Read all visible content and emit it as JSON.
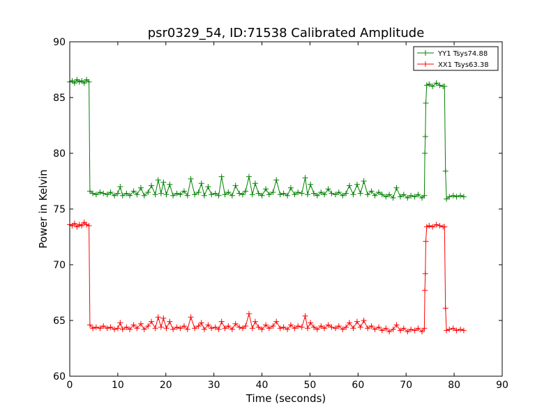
{
  "chart_data": {
    "type": "line",
    "title": "psr0329_54, ID:71538 Calibrated Amplitude",
    "xlabel": "Time (seconds)",
    "ylabel": "Power in Kelvin",
    "xlim": [
      0,
      90
    ],
    "ylim": [
      60,
      90
    ],
    "xticks": [
      0,
      10,
      20,
      30,
      40,
      50,
      60,
      70,
      80,
      90
    ],
    "yticks": [
      60,
      65,
      70,
      75,
      80,
      85,
      90
    ],
    "grid": false,
    "legend_position": "top-right",
    "marker": "plus",
    "series": [
      {
        "name": "YY1 Tsys74.88",
        "color": "#008000",
        "points": [
          [
            0.0,
            86.4
          ],
          [
            0.5,
            86.5
          ],
          [
            1.0,
            86.3
          ],
          [
            1.5,
            86.6
          ],
          [
            2.0,
            86.4
          ],
          [
            2.5,
            86.5
          ],
          [
            3.0,
            86.3
          ],
          [
            3.5,
            86.6
          ],
          [
            4.0,
            86.4
          ],
          [
            4.2,
            76.6
          ],
          [
            4.8,
            76.4
          ],
          [
            5.5,
            76.3
          ],
          [
            6.3,
            76.5
          ],
          [
            7.0,
            76.4
          ],
          [
            7.8,
            76.3
          ],
          [
            8.5,
            76.5
          ],
          [
            9.3,
            76.2
          ],
          [
            10.0,
            76.4
          ],
          [
            10.5,
            77.0
          ],
          [
            11.0,
            76.2
          ],
          [
            11.8,
            76.4
          ],
          [
            12.5,
            76.2
          ],
          [
            13.3,
            76.6
          ],
          [
            14.0,
            76.3
          ],
          [
            14.8,
            76.9
          ],
          [
            15.5,
            76.2
          ],
          [
            16.3,
            76.5
          ],
          [
            17.0,
            77.1
          ],
          [
            17.8,
            76.3
          ],
          [
            18.4,
            77.6
          ],
          [
            19.0,
            76.4
          ],
          [
            19.5,
            77.4
          ],
          [
            20.1,
            76.3
          ],
          [
            20.8,
            77.2
          ],
          [
            21.5,
            76.2
          ],
          [
            22.3,
            76.4
          ],
          [
            23.0,
            76.3
          ],
          [
            23.8,
            76.6
          ],
          [
            24.5,
            76.2
          ],
          [
            25.2,
            77.7
          ],
          [
            26.0,
            76.3
          ],
          [
            26.8,
            76.5
          ],
          [
            27.4,
            77.3
          ],
          [
            28.0,
            76.2
          ],
          [
            28.8,
            77.0
          ],
          [
            29.5,
            76.3
          ],
          [
            30.3,
            76.4
          ],
          [
            31.0,
            76.2
          ],
          [
            31.6,
            77.9
          ],
          [
            32.3,
            76.3
          ],
          [
            33.0,
            76.5
          ],
          [
            33.8,
            76.2
          ],
          [
            34.5,
            77.1
          ],
          [
            35.3,
            76.4
          ],
          [
            36.0,
            76.3
          ],
          [
            36.6,
            76.6
          ],
          [
            37.3,
            77.9
          ],
          [
            38.0,
            76.3
          ],
          [
            38.6,
            77.3
          ],
          [
            39.3,
            76.4
          ],
          [
            40.0,
            76.2
          ],
          [
            40.8,
            76.8
          ],
          [
            41.5,
            76.3
          ],
          [
            42.3,
            76.5
          ],
          [
            43.0,
            77.6
          ],
          [
            43.8,
            76.3
          ],
          [
            44.5,
            76.4
          ],
          [
            45.3,
            76.2
          ],
          [
            46.0,
            76.9
          ],
          [
            46.8,
            76.3
          ],
          [
            47.5,
            76.5
          ],
          [
            48.3,
            76.4
          ],
          [
            49.0,
            77.8
          ],
          [
            49.5,
            76.3
          ],
          [
            50.1,
            77.2
          ],
          [
            50.8,
            76.4
          ],
          [
            51.5,
            76.2
          ],
          [
            52.3,
            76.5
          ],
          [
            53.0,
            76.3
          ],
          [
            53.8,
            76.8
          ],
          [
            54.5,
            76.4
          ],
          [
            55.3,
            76.3
          ],
          [
            56.0,
            76.5
          ],
          [
            56.8,
            76.2
          ],
          [
            57.5,
            76.4
          ],
          [
            58.2,
            77.1
          ],
          [
            59.0,
            76.3
          ],
          [
            59.8,
            77.2
          ],
          [
            60.5,
            76.4
          ],
          [
            61.2,
            77.5
          ],
          [
            62.0,
            76.3
          ],
          [
            62.8,
            76.6
          ],
          [
            63.5,
            76.2
          ],
          [
            64.3,
            76.5
          ],
          [
            65.0,
            76.3
          ],
          [
            65.8,
            76.1
          ],
          [
            66.5,
            76.3
          ],
          [
            67.3,
            76.0
          ],
          [
            68.0,
            76.9
          ],
          [
            68.8,
            76.1
          ],
          [
            69.5,
            76.3
          ],
          [
            70.3,
            76.0
          ],
          [
            71.0,
            76.2
          ],
          [
            71.8,
            76.1
          ],
          [
            72.5,
            76.3
          ],
          [
            73.3,
            76.0
          ],
          [
            73.8,
            76.2
          ],
          [
            73.9,
            80.0
          ],
          [
            74.0,
            81.5
          ],
          [
            74.1,
            84.5
          ],
          [
            74.3,
            86.1
          ],
          [
            74.8,
            86.2
          ],
          [
            75.5,
            86.0
          ],
          [
            76.3,
            86.3
          ],
          [
            77.0,
            86.1
          ],
          [
            77.7,
            86.0
          ],
          [
            78.0,
            86.0
          ],
          [
            78.2,
            78.4
          ],
          [
            78.4,
            75.9
          ],
          [
            79.0,
            76.1
          ],
          [
            79.8,
            76.2
          ],
          [
            80.5,
            76.1
          ],
          [
            81.3,
            76.2
          ],
          [
            82.0,
            76.1
          ]
        ]
      },
      {
        "name": "XX1 Tsys63.38",
        "color": "#ff0000",
        "points": [
          [
            0.0,
            73.6
          ],
          [
            0.5,
            73.5
          ],
          [
            1.0,
            73.7
          ],
          [
            1.5,
            73.4
          ],
          [
            2.0,
            73.6
          ],
          [
            2.5,
            73.5
          ],
          [
            3.0,
            73.8
          ],
          [
            3.5,
            73.6
          ],
          [
            4.0,
            73.5
          ],
          [
            4.2,
            64.6
          ],
          [
            4.8,
            64.3
          ],
          [
            5.5,
            64.4
          ],
          [
            6.3,
            64.3
          ],
          [
            7.0,
            64.5
          ],
          [
            7.8,
            64.3
          ],
          [
            8.5,
            64.4
          ],
          [
            9.3,
            64.2
          ],
          [
            10.0,
            64.3
          ],
          [
            10.5,
            64.8
          ],
          [
            11.0,
            64.2
          ],
          [
            11.8,
            64.4
          ],
          [
            12.5,
            64.2
          ],
          [
            13.3,
            64.6
          ],
          [
            14.0,
            64.3
          ],
          [
            14.8,
            64.7
          ],
          [
            15.5,
            64.2
          ],
          [
            16.3,
            64.5
          ],
          [
            17.0,
            64.9
          ],
          [
            17.8,
            64.3
          ],
          [
            18.4,
            65.3
          ],
          [
            19.0,
            64.4
          ],
          [
            19.5,
            65.2
          ],
          [
            20.1,
            64.3
          ],
          [
            20.8,
            64.9
          ],
          [
            21.5,
            64.2
          ],
          [
            22.3,
            64.4
          ],
          [
            23.0,
            64.3
          ],
          [
            23.8,
            64.5
          ],
          [
            24.5,
            64.2
          ],
          [
            25.2,
            65.3
          ],
          [
            26.0,
            64.3
          ],
          [
            26.8,
            64.5
          ],
          [
            27.4,
            64.8
          ],
          [
            28.0,
            64.2
          ],
          [
            28.8,
            64.6
          ],
          [
            29.5,
            64.3
          ],
          [
            30.3,
            64.4
          ],
          [
            31.0,
            64.2
          ],
          [
            31.6,
            64.9
          ],
          [
            32.3,
            64.3
          ],
          [
            33.0,
            64.5
          ],
          [
            33.8,
            64.2
          ],
          [
            34.5,
            64.7
          ],
          [
            35.3,
            64.4
          ],
          [
            36.0,
            64.3
          ],
          [
            36.6,
            64.5
          ],
          [
            37.3,
            65.6
          ],
          [
            38.0,
            64.3
          ],
          [
            38.6,
            64.9
          ],
          [
            39.3,
            64.4
          ],
          [
            40.0,
            64.2
          ],
          [
            40.8,
            64.6
          ],
          [
            41.5,
            64.3
          ],
          [
            42.3,
            64.5
          ],
          [
            43.0,
            64.9
          ],
          [
            43.8,
            64.3
          ],
          [
            44.5,
            64.4
          ],
          [
            45.3,
            64.2
          ],
          [
            46.0,
            64.6
          ],
          [
            46.8,
            64.3
          ],
          [
            47.5,
            64.5
          ],
          [
            48.3,
            64.4
          ],
          [
            49.0,
            65.4
          ],
          [
            49.5,
            64.3
          ],
          [
            50.1,
            64.8
          ],
          [
            50.8,
            64.4
          ],
          [
            51.5,
            64.2
          ],
          [
            52.3,
            64.5
          ],
          [
            53.0,
            64.3
          ],
          [
            53.8,
            64.6
          ],
          [
            54.5,
            64.4
          ],
          [
            55.3,
            64.3
          ],
          [
            56.0,
            64.5
          ],
          [
            56.8,
            64.2
          ],
          [
            57.5,
            64.4
          ],
          [
            58.2,
            64.8
          ],
          [
            59.0,
            64.3
          ],
          [
            59.8,
            64.9
          ],
          [
            60.5,
            64.4
          ],
          [
            61.2,
            65.0
          ],
          [
            62.0,
            64.3
          ],
          [
            62.8,
            64.5
          ],
          [
            63.5,
            64.2
          ],
          [
            64.3,
            64.4
          ],
          [
            65.0,
            64.1
          ],
          [
            65.8,
            64.3
          ],
          [
            66.5,
            64.0
          ],
          [
            67.3,
            64.2
          ],
          [
            68.0,
            64.6
          ],
          [
            68.8,
            64.1
          ],
          [
            69.5,
            64.3
          ],
          [
            70.3,
            64.0
          ],
          [
            71.0,
            64.2
          ],
          [
            71.8,
            64.1
          ],
          [
            72.5,
            64.3
          ],
          [
            73.3,
            64.0
          ],
          [
            73.8,
            64.3
          ],
          [
            73.9,
            67.7
          ],
          [
            74.0,
            69.2
          ],
          [
            74.1,
            72.1
          ],
          [
            74.3,
            73.4
          ],
          [
            74.8,
            73.5
          ],
          [
            75.5,
            73.4
          ],
          [
            76.3,
            73.6
          ],
          [
            77.0,
            73.5
          ],
          [
            77.7,
            73.4
          ],
          [
            78.0,
            73.4
          ],
          [
            78.2,
            66.1
          ],
          [
            78.4,
            64.1
          ],
          [
            79.0,
            64.2
          ],
          [
            79.8,
            64.3
          ],
          [
            80.5,
            64.1
          ],
          [
            81.3,
            64.2
          ],
          [
            82.0,
            64.1
          ]
        ]
      }
    ]
  }
}
